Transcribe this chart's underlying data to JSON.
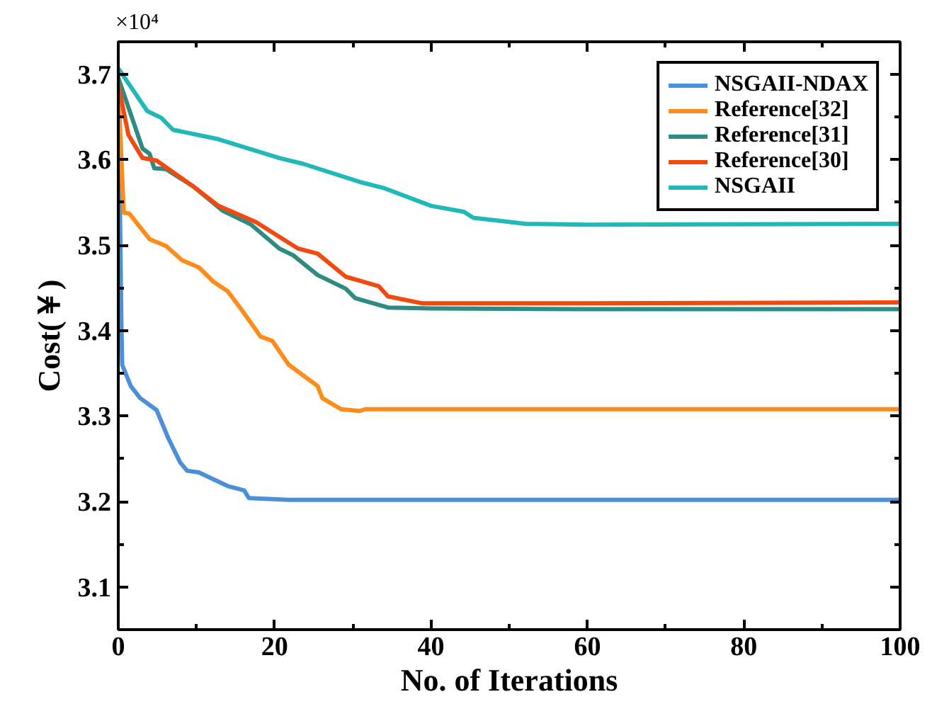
{
  "chart_data": {
    "type": "line",
    "xlabel": "No. of Iterations",
    "ylabel": "Cost(￥)",
    "annotations": [
      "×10⁴"
    ],
    "xlim": [
      0,
      100
    ],
    "ylim": [
      3.05,
      3.738
    ],
    "xticks": [
      0,
      20,
      40,
      60,
      80,
      100
    ],
    "yticks": [
      3.1,
      3.2,
      3.3,
      3.4,
      3.5,
      3.6,
      3.7
    ],
    "grid": false,
    "legend": "top right",
    "line_style": "solid",
    "marker": "none",
    "series": [
      {
        "name": "NSGAII-NDAX",
        "color": "#4a90d9",
        "x": [
          0,
          0.2,
          0.4,
          0.5,
          1.6,
          2.8,
          4.9,
          6.4,
          7.9,
          8.8,
          10.3,
          14,
          16.1,
          16.7,
          21.8,
          30,
          60,
          100
        ],
        "values": [
          3.7,
          3.55,
          3.407,
          3.36,
          3.335,
          3.321,
          3.307,
          3.274,
          3.246,
          3.236,
          3.234,
          3.218,
          3.213,
          3.204,
          3.202,
          3.202,
          3.202,
          3.202
        ]
      },
      {
        "name": "Reference[32]",
        "color": "#ff8c1a",
        "x": [
          0,
          0.7,
          1.4,
          4,
          6.1,
          8.2,
          10.3,
          12.2,
          14,
          15.8,
          18.2,
          19.7,
          21.8,
          25.5,
          26.1,
          28.5,
          30.9,
          31.6,
          60,
          100
        ],
        "values": [
          3.685,
          3.538,
          3.537,
          3.507,
          3.499,
          3.482,
          3.474,
          3.457,
          3.446,
          3.424,
          3.393,
          3.388,
          3.36,
          3.335,
          3.321,
          3.308,
          3.306,
          3.308,
          3.308,
          3.308
        ]
      },
      {
        "name": "Reference[31]",
        "color": "#2e8b82",
        "x": [
          0,
          3.1,
          4,
          4.6,
          6.1,
          9.7,
          13.4,
          17,
          20.6,
          22.4,
          25.5,
          29.1,
          30.3,
          34.5,
          40,
          60,
          100
        ],
        "values": [
          3.696,
          3.613,
          3.607,
          3.59,
          3.589,
          3.568,
          3.54,
          3.524,
          3.496,
          3.488,
          3.465,
          3.449,
          3.438,
          3.427,
          3.426,
          3.425,
          3.425
        ]
      },
      {
        "name": "Reference[30]",
        "color": "#f04a10",
        "x": [
          0,
          1.3,
          3.1,
          4.9,
          9.7,
          12.8,
          17.6,
          23,
          25.5,
          29.1,
          33.3,
          34.5,
          38.8,
          60,
          100
        ],
        "values": [
          3.688,
          3.629,
          3.602,
          3.599,
          3.568,
          3.546,
          3.527,
          3.496,
          3.49,
          3.463,
          3.452,
          3.44,
          3.432,
          3.432,
          3.433
        ]
      },
      {
        "name": "NSGAII",
        "color": "#20b8b8",
        "x": [
          0,
          3.7,
          5.5,
          7,
          12.8,
          20.6,
          23.7,
          30.9,
          33.9,
          40,
          44.2,
          45.4,
          52.1,
          60,
          100
        ],
        "values": [
          3.707,
          3.657,
          3.649,
          3.635,
          3.624,
          3.602,
          3.595,
          3.574,
          3.567,
          3.546,
          3.539,
          3.532,
          3.525,
          3.524,
          3.525
        ]
      }
    ]
  }
}
